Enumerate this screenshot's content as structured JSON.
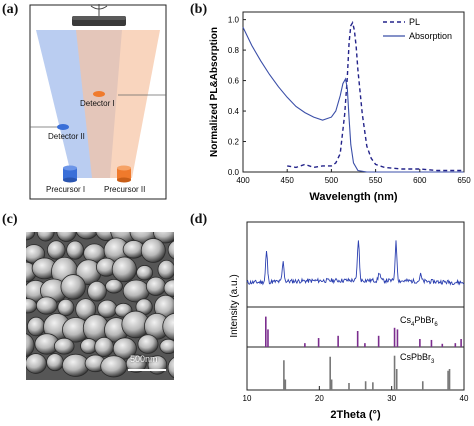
{
  "panels": {
    "a": "(a)",
    "b": "(b)",
    "c": "(c)",
    "d": "(d)"
  },
  "schematic": {
    "detector_1": "Detector I",
    "detector_2": "Detector II",
    "precursor_1": "Precursor I",
    "precursor_2": "Precursor II",
    "colors": {
      "precursor_1": "#3a6fd8",
      "precursor_2": "#f07a2c",
      "beam_1": "#a9c0ee",
      "beam_2": "#f6c3a2"
    }
  },
  "sem": {
    "scalebar_label": "500nm"
  },
  "chart_data": [
    {
      "type": "line",
      "title": "",
      "xlabel": "Wavelength (nm)",
      "ylabel": "Normalized PL&Absorption",
      "xlim": [
        400,
        650
      ],
      "ylim": [
        0,
        1.05
      ],
      "xticks": [
        "400",
        "450",
        "500",
        "550",
        "600",
        "650"
      ],
      "yticks": [
        "0.0",
        "0.2",
        "0.4",
        "0.6",
        "0.8",
        "1.0"
      ],
      "legend": "top-right",
      "series": [
        {
          "name": "PL",
          "style": "dashed",
          "color": "#23238a",
          "x": [
            450,
            460,
            470,
            480,
            490,
            500,
            505,
            510,
            515,
            518,
            520,
            522,
            524,
            526,
            528,
            530,
            535,
            540,
            545,
            550,
            560,
            580,
            600,
            620,
            650
          ],
          "y": [
            0.04,
            0.03,
            0.05,
            0.03,
            0.04,
            0.04,
            0.06,
            0.12,
            0.38,
            0.62,
            0.85,
            0.96,
            0.98,
            0.93,
            0.82,
            0.67,
            0.38,
            0.17,
            0.09,
            0.05,
            0.03,
            0.02,
            0.02,
            0.01,
            0.01
          ]
        },
        {
          "name": "Absorption",
          "style": "solid",
          "color": "#3b4fa8",
          "x": [
            400,
            410,
            420,
            430,
            440,
            450,
            460,
            470,
            480,
            490,
            500,
            505,
            510,
            513,
            516,
            518,
            520,
            522,
            525,
            530,
            540,
            550,
            570,
            600,
            650
          ],
          "y": [
            0.95,
            0.83,
            0.73,
            0.64,
            0.56,
            0.49,
            0.43,
            0.39,
            0.36,
            0.34,
            0.36,
            0.4,
            0.5,
            0.58,
            0.61,
            0.55,
            0.35,
            0.18,
            0.06,
            0.01,
            0.0,
            0.0,
            0.0,
            0.0,
            0.0
          ]
        }
      ]
    },
    {
      "type": "line",
      "title": "",
      "xlabel": "2Theta (°)",
      "ylabel": "Intensity (a.u.)",
      "xlim": [
        10,
        40
      ],
      "xticks": [
        "10",
        "20",
        "30",
        "40"
      ],
      "subplots": [
        {
          "kind": "measured-pattern",
          "color": "#2b3fb0",
          "peaks": [
            {
              "x": 12.7,
              "height": 0.55
            },
            {
              "x": 15.0,
              "height": 0.35
            },
            {
              "x": 25.4,
              "height": 0.75
            },
            {
              "x": 28.3,
              "height": 0.15
            },
            {
              "x": 30.6,
              "height": 0.7
            },
            {
              "x": 34.0,
              "height": 0.12
            }
          ]
        },
        {
          "kind": "reference-sticks",
          "label_main": "Cs",
          "label_sub1": "4",
          "label_mid": "PbBr",
          "label_sub2": "6",
          "color": "#7b2d8e",
          "x": [
            12.6,
            12.9,
            18.0,
            19.9,
            22.6,
            25.3,
            26.3,
            28.2,
            30.4,
            30.8,
            33.9,
            35.5,
            37.0,
            38.8,
            39.6
          ],
          "y": [
            0.95,
            0.55,
            0.12,
            0.28,
            0.35,
            0.5,
            0.12,
            0.35,
            0.6,
            0.55,
            0.25,
            0.22,
            0.1,
            0.12,
            0.25
          ]
        },
        {
          "kind": "reference-sticks",
          "label_main": "CsPbBr",
          "label_sub": "3",
          "color": "#777777",
          "x": [
            15.1,
            15.3,
            21.5,
            21.7,
            24.1,
            26.4,
            27.4,
            30.4,
            30.7,
            34.3,
            37.8,
            38.0
          ],
          "y": [
            0.85,
            0.3,
            0.95,
            0.3,
            0.2,
            0.25,
            0.22,
            0.98,
            0.6,
            0.25,
            0.55,
            0.6
          ]
        }
      ]
    }
  ]
}
